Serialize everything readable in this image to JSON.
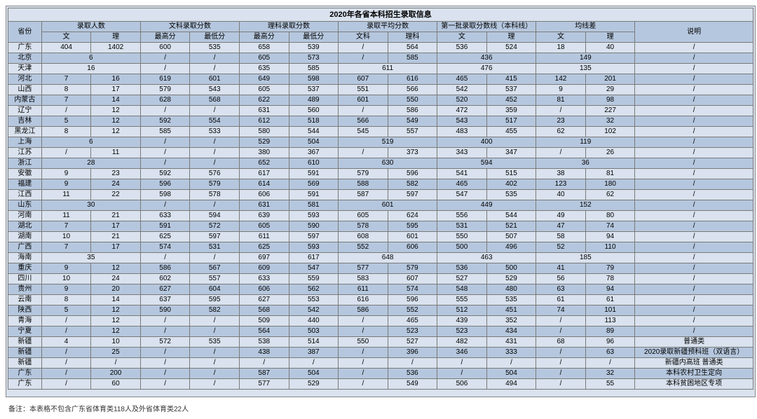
{
  "title": "2020年各省本科招生录取信息",
  "columns": {
    "groups": [
      "省份",
      "录取人数",
      "文科录取分数",
      "理科录取分数",
      "录取平均分数",
      "第一批录取分数线（本科线）",
      "均线差",
      "说明"
    ],
    "subs": {
      "admit": [
        "文",
        "理"
      ],
      "arts_score": [
        "最高分",
        "最低分"
      ],
      "sci_score": [
        "最高分",
        "最低分"
      ],
      "avg": [
        "文科",
        "理科"
      ],
      "line": [
        "文",
        "理"
      ],
      "diff": [
        "文",
        "理"
      ]
    }
  },
  "note": "备注：本表格不包含广东省体育类118人及外省体育类22人",
  "rows": [
    {
      "p": "广东",
      "a": [
        "404",
        "1402"
      ],
      "as": [
        "600",
        "535"
      ],
      "ss": [
        "658",
        "539"
      ],
      "av": [
        "/",
        "564"
      ],
      "ln": [
        "536",
        "524"
      ],
      "df": [
        "18",
        "40"
      ],
      "d": "/"
    },
    {
      "p": "北京",
      "a": [
        "6",
        ""
      ],
      "as": [
        "/",
        "/"
      ],
      "ss": [
        "605",
        "573"
      ],
      "av": [
        "/",
        "585"
      ],
      "ln": [
        "436",
        ""
      ],
      "df": [
        "149",
        ""
      ],
      "d": "/"
    },
    {
      "p": "天津",
      "a": [
        "16",
        ""
      ],
      "as": [
        "/",
        "/"
      ],
      "ss": [
        "635",
        "585"
      ],
      "av": [
        "611",
        ""
      ],
      "ln": [
        "476",
        ""
      ],
      "df": [
        "135",
        ""
      ],
      "d": "/"
    },
    {
      "p": "河北",
      "a": [
        "7",
        "16"
      ],
      "as": [
        "619",
        "601"
      ],
      "ss": [
        "649",
        "598"
      ],
      "av": [
        "607",
        "616"
      ],
      "ln": [
        "465",
        "415"
      ],
      "df": [
        "142",
        "201"
      ],
      "d": "/"
    },
    {
      "p": "山西",
      "a": [
        "8",
        "17"
      ],
      "as": [
        "579",
        "543"
      ],
      "ss": [
        "605",
        "537"
      ],
      "av": [
        "551",
        "566"
      ],
      "ln": [
        "542",
        "537"
      ],
      "df": [
        "9",
        "29"
      ],
      "d": "/"
    },
    {
      "p": "内蒙古",
      "a": [
        "7",
        "14"
      ],
      "as": [
        "628",
        "568"
      ],
      "ss": [
        "622",
        "489"
      ],
      "av": [
        "601",
        "550"
      ],
      "ln": [
        "520",
        "452"
      ],
      "df": [
        "81",
        "98"
      ],
      "d": "/"
    },
    {
      "p": "辽宁",
      "a": [
        "/",
        "12"
      ],
      "as": [
        "/",
        "/"
      ],
      "ss": [
        "631",
        "560"
      ],
      "av": [
        "/",
        "586"
      ],
      "ln": [
        "472",
        "359"
      ],
      "df": [
        "/",
        "227"
      ],
      "d": "/"
    },
    {
      "p": "吉林",
      "a": [
        "5",
        "12"
      ],
      "as": [
        "592",
        "554"
      ],
      "ss": [
        "612",
        "518"
      ],
      "av": [
        "566",
        "549"
      ],
      "ln": [
        "543",
        "517"
      ],
      "df": [
        "23",
        "32"
      ],
      "d": "/"
    },
    {
      "p": "黑龙江",
      "a": [
        "8",
        "12"
      ],
      "as": [
        "585",
        "533"
      ],
      "ss": [
        "580",
        "544"
      ],
      "av": [
        "545",
        "557"
      ],
      "ln": [
        "483",
        "455"
      ],
      "df": [
        "62",
        "102"
      ],
      "d": "/"
    },
    {
      "p": "上海",
      "a": [
        "6",
        ""
      ],
      "as": [
        "/",
        "/"
      ],
      "ss": [
        "529",
        "504"
      ],
      "av": [
        "519",
        ""
      ],
      "ln": [
        "400",
        ""
      ],
      "df": [
        "119",
        ""
      ],
      "d": "/"
    },
    {
      "p": "江苏",
      "a": [
        "/",
        "11"
      ],
      "as": [
        "/",
        "/"
      ],
      "ss": [
        "380",
        "367"
      ],
      "av": [
        "/",
        "373"
      ],
      "ln": [
        "343",
        "347"
      ],
      "df": [
        "/",
        "26"
      ],
      "d": "/"
    },
    {
      "p": "浙江",
      "a": [
        "28",
        ""
      ],
      "as": [
        "/",
        "/"
      ],
      "ss": [
        "652",
        "610"
      ],
      "av": [
        "630",
        ""
      ],
      "ln": [
        "594",
        ""
      ],
      "df": [
        "36",
        ""
      ],
      "d": "/"
    },
    {
      "p": "安徽",
      "a": [
        "9",
        "23"
      ],
      "as": [
        "592",
        "576"
      ],
      "ss": [
        "617",
        "591"
      ],
      "av": [
        "579",
        "596"
      ],
      "ln": [
        "541",
        "515"
      ],
      "df": [
        "38",
        "81"
      ],
      "d": "/"
    },
    {
      "p": "福建",
      "a": [
        "9",
        "24"
      ],
      "as": [
        "596",
        "579"
      ],
      "ss": [
        "614",
        "569"
      ],
      "av": [
        "588",
        "582"
      ],
      "ln": [
        "465",
        "402"
      ],
      "df": [
        "123",
        "180"
      ],
      "d": "/"
    },
    {
      "p": "江西",
      "a": [
        "11",
        "22"
      ],
      "as": [
        "598",
        "578"
      ],
      "ss": [
        "606",
        "591"
      ],
      "av": [
        "587",
        "597"
      ],
      "ln": [
        "547",
        "535"
      ],
      "df": [
        "40",
        "62"
      ],
      "d": "/"
    },
    {
      "p": "山东",
      "a": [
        "30",
        ""
      ],
      "as": [
        "/",
        "/"
      ],
      "ss": [
        "631",
        "581"
      ],
      "av": [
        "601",
        ""
      ],
      "ln": [
        "449",
        ""
      ],
      "df": [
        "152",
        ""
      ],
      "d": "/"
    },
    {
      "p": "河南",
      "a": [
        "11",
        "21"
      ],
      "as": [
        "633",
        "594"
      ],
      "ss": [
        "639",
        "593"
      ],
      "av": [
        "605",
        "624"
      ],
      "ln": [
        "556",
        "544"
      ],
      "df": [
        "49",
        "80"
      ],
      "d": "/"
    },
    {
      "p": "湖北",
      "a": [
        "7",
        "17"
      ],
      "as": [
        "591",
        "572"
      ],
      "ss": [
        "605",
        "590"
      ],
      "av": [
        "578",
        "595"
      ],
      "ln": [
        "531",
        "521"
      ],
      "df": [
        "47",
        "74"
      ],
      "d": "/"
    },
    {
      "p": "湖南",
      "a": [
        "10",
        "21"
      ],
      "as": [
        "625",
        "597"
      ],
      "ss": [
        "611",
        "597"
      ],
      "av": [
        "608",
        "601"
      ],
      "ln": [
        "550",
        "507"
      ],
      "df": [
        "58",
        "94"
      ],
      "d": "/"
    },
    {
      "p": "广西",
      "a": [
        "7",
        "17"
      ],
      "as": [
        "574",
        "531"
      ],
      "ss": [
        "625",
        "593"
      ],
      "av": [
        "552",
        "606"
      ],
      "ln": [
        "500",
        "496"
      ],
      "df": [
        "52",
        "110"
      ],
      "d": "/"
    },
    {
      "p": "海南",
      "a": [
        "35",
        ""
      ],
      "as": [
        "/",
        "/"
      ],
      "ss": [
        "697",
        "617"
      ],
      "av": [
        "648",
        ""
      ],
      "ln": [
        "463",
        ""
      ],
      "df": [
        "185",
        ""
      ],
      "d": "/"
    },
    {
      "p": "重庆",
      "a": [
        "9",
        "12"
      ],
      "as": [
        "586",
        "567"
      ],
      "ss": [
        "609",
        "547"
      ],
      "av": [
        "577",
        "579"
      ],
      "ln": [
        "536",
        "500"
      ],
      "df": [
        "41",
        "79"
      ],
      "d": "/"
    },
    {
      "p": "四川",
      "a": [
        "10",
        "24"
      ],
      "as": [
        "602",
        "557"
      ],
      "ss": [
        "633",
        "559"
      ],
      "av": [
        "583",
        "607"
      ],
      "ln": [
        "527",
        "529"
      ],
      "df": [
        "56",
        "78"
      ],
      "d": "/"
    },
    {
      "p": "贵州",
      "a": [
        "9",
        "20"
      ],
      "as": [
        "627",
        "604"
      ],
      "ss": [
        "606",
        "562"
      ],
      "av": [
        "611",
        "574"
      ],
      "ln": [
        "548",
        "480"
      ],
      "df": [
        "63",
        "94"
      ],
      "d": "/"
    },
    {
      "p": "云南",
      "a": [
        "8",
        "14"
      ],
      "as": [
        "637",
        "595"
      ],
      "ss": [
        "627",
        "553"
      ],
      "av": [
        "616",
        "596"
      ],
      "ln": [
        "555",
        "535"
      ],
      "df": [
        "61",
        "61"
      ],
      "d": "/"
    },
    {
      "p": "陕西",
      "a": [
        "5",
        "12"
      ],
      "as": [
        "590",
        "582"
      ],
      "ss": [
        "568",
        "542"
      ],
      "av": [
        "586",
        "552"
      ],
      "ln": [
        "512",
        "451"
      ],
      "df": [
        "74",
        "101"
      ],
      "d": "/"
    },
    {
      "p": "青海",
      "a": [
        "/",
        "12"
      ],
      "as": [
        "/",
        "/"
      ],
      "ss": [
        "509",
        "440"
      ],
      "av": [
        "/",
        "465"
      ],
      "ln": [
        "439",
        "352"
      ],
      "df": [
        "/",
        "113"
      ],
      "d": "/"
    },
    {
      "p": "宁夏",
      "a": [
        "/",
        "12"
      ],
      "as": [
        "/",
        "/"
      ],
      "ss": [
        "564",
        "503"
      ],
      "av": [
        "/",
        "523"
      ],
      "ln": [
        "523",
        "434"
      ],
      "df": [
        "/",
        "89"
      ],
      "d": "/"
    },
    {
      "p": "新疆",
      "a": [
        "4",
        "10"
      ],
      "as": [
        "572",
        "535"
      ],
      "ss": [
        "538",
        "514"
      ],
      "av": [
        "550",
        "527"
      ],
      "ln": [
        "482",
        "431"
      ],
      "df": [
        "68",
        "96"
      ],
      "d": "普通类"
    },
    {
      "p": "新疆",
      "a": [
        "/",
        "25"
      ],
      "as": [
        "/",
        "/"
      ],
      "ss": [
        "438",
        "387"
      ],
      "av": [
        "/",
        "396"
      ],
      "ln": [
        "346",
        "333"
      ],
      "df": [
        "/",
        "63"
      ],
      "d": "2020录取新疆预科班（双语言）"
    },
    {
      "p": "新疆",
      "a": [
        "/",
        "/"
      ],
      "as": [
        "/",
        "/"
      ],
      "ss": [
        "/",
        "/"
      ],
      "av": [
        "/",
        "/"
      ],
      "ln": [
        "/",
        "/"
      ],
      "df": [
        "/",
        "/"
      ],
      "d": "新疆内高班  普通类"
    },
    {
      "p": "广东",
      "a": [
        "/",
        "200"
      ],
      "as": [
        "/",
        "/"
      ],
      "ss": [
        "587",
        "504"
      ],
      "av": [
        "/",
        "536"
      ],
      "ln": [
        "/",
        "504"
      ],
      "df": [
        "/",
        "32"
      ],
      "d": "本科农村卫生定向"
    },
    {
      "p": "广东",
      "a": [
        "/",
        "60"
      ],
      "as": [
        "/",
        "/"
      ],
      "ss": [
        "577",
        "529"
      ],
      "av": [
        "/",
        "549"
      ],
      "ln": [
        "506",
        "494"
      ],
      "df": [
        "/",
        "55"
      ],
      "d": "本科贫困地区专项"
    }
  ]
}
